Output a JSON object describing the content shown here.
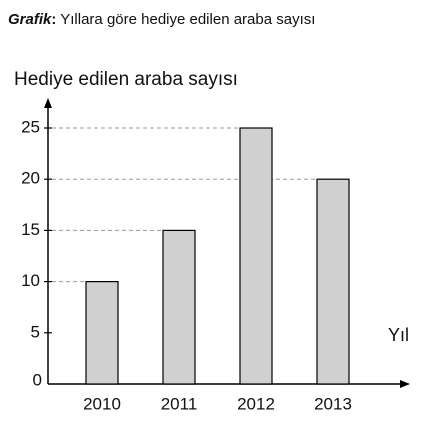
{
  "chart_data": {
    "type": "bar",
    "title": [
      "Grafik",
      ":",
      " Yıllara göre hediye edilen araba sayısı"
    ],
    "y_label": "Hediye edilen araba sayısı",
    "x_label": "Yıl",
    "categories": [
      "2010",
      "2011",
      "2012",
      "2013"
    ],
    "values": [
      10,
      15,
      25,
      20
    ],
    "color": "#d0d0d0",
    "ylim": [
      0,
      27.5
    ],
    "yticks": [
      0,
      5,
      10,
      15,
      20,
      25
    ],
    "grid": true
  }
}
